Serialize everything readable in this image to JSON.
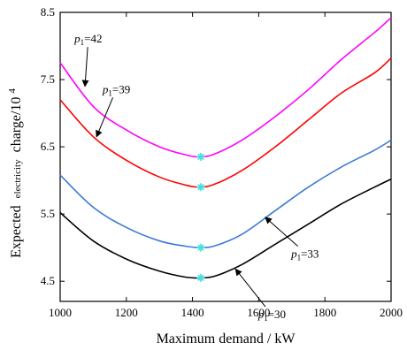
{
  "chart_data": {
    "type": "line",
    "xlabel": "Maximum  demand / kW",
    "ylabel": {
      "part1": "Expected",
      "part2": "electricity",
      "part3": "charge/10",
      "exp": "4"
    },
    "xlim": [
      1000,
      2000
    ],
    "ylim": [
      4.2,
      8.5
    ],
    "xticks": [
      "1000",
      "1200",
      "1400",
      "1600",
      "1800",
      "2000"
    ],
    "yticks": [
      "4.5",
      "5.5",
      "6.5",
      "7.5",
      "8.5"
    ],
    "grid": false,
    "series": [
      {
        "name": "p1=42",
        "p": "p",
        "sub": "1",
        "val": "=42",
        "color": "#ff00ff",
        "x": [
          1000,
          1100,
          1200,
          1300,
          1380,
          1425,
          1470,
          1550,
          1650,
          1750,
          1850,
          1950,
          2000
        ],
        "y": [
          7.75,
          7.1,
          6.75,
          6.5,
          6.38,
          6.35,
          6.4,
          6.6,
          6.95,
          7.35,
          7.8,
          8.2,
          8.42
        ]
      },
      {
        "name": "p1=39",
        "p": "p",
        "sub": "1",
        "val": "=39",
        "color": "#ff0000",
        "x": [
          1000,
          1100,
          1200,
          1300,
          1380,
          1425,
          1470,
          1550,
          1650,
          1750,
          1850,
          1950,
          2000
        ],
        "y": [
          7.2,
          6.65,
          6.3,
          6.05,
          5.93,
          5.9,
          5.95,
          6.15,
          6.5,
          6.9,
          7.3,
          7.6,
          7.82
        ]
      },
      {
        "name": "p1=33",
        "p": "p",
        "sub": "1",
        "val": "=33",
        "color": "#3a7bd5",
        "x": [
          1000,
          1100,
          1200,
          1300,
          1380,
          1425,
          1470,
          1550,
          1650,
          1750,
          1850,
          1950,
          2000
        ],
        "y": [
          6.08,
          5.6,
          5.3,
          5.1,
          5.02,
          5.0,
          5.03,
          5.2,
          5.55,
          5.9,
          6.2,
          6.45,
          6.6
        ]
      },
      {
        "name": "p1=30",
        "p": "p",
        "sub": "1",
        "val": "=30",
        "color": "#000000",
        "x": [
          1000,
          1100,
          1200,
          1300,
          1380,
          1425,
          1470,
          1550,
          1650,
          1750,
          1850,
          1950,
          2000
        ],
        "y": [
          5.52,
          5.1,
          4.83,
          4.65,
          4.56,
          4.55,
          4.58,
          4.75,
          5.05,
          5.35,
          5.65,
          5.9,
          6.02
        ]
      }
    ],
    "markers": {
      "color": "#40e0e0",
      "x": [
        1425,
        1425,
        1425,
        1425
      ],
      "y": [
        6.35,
        5.9,
        5.0,
        4.55
      ]
    },
    "annotations": [
      {
        "series": 0,
        "label_x": 1085,
        "label_y": 8.05,
        "arrow_x": 1075,
        "arrow_y": 7.4
      },
      {
        "series": 1,
        "label_x": 1170,
        "label_y": 7.3,
        "arrow_x": 1110,
        "arrow_y": 6.65
      },
      {
        "series": 2,
        "label_x": 1740,
        "label_y": 4.85,
        "arrow_x": 1620,
        "arrow_y": 5.45
      },
      {
        "series": 3,
        "label_x": 1640,
        "label_y": 3.95,
        "arrow_x": 1530,
        "arrow_y": 4.68
      }
    ]
  }
}
